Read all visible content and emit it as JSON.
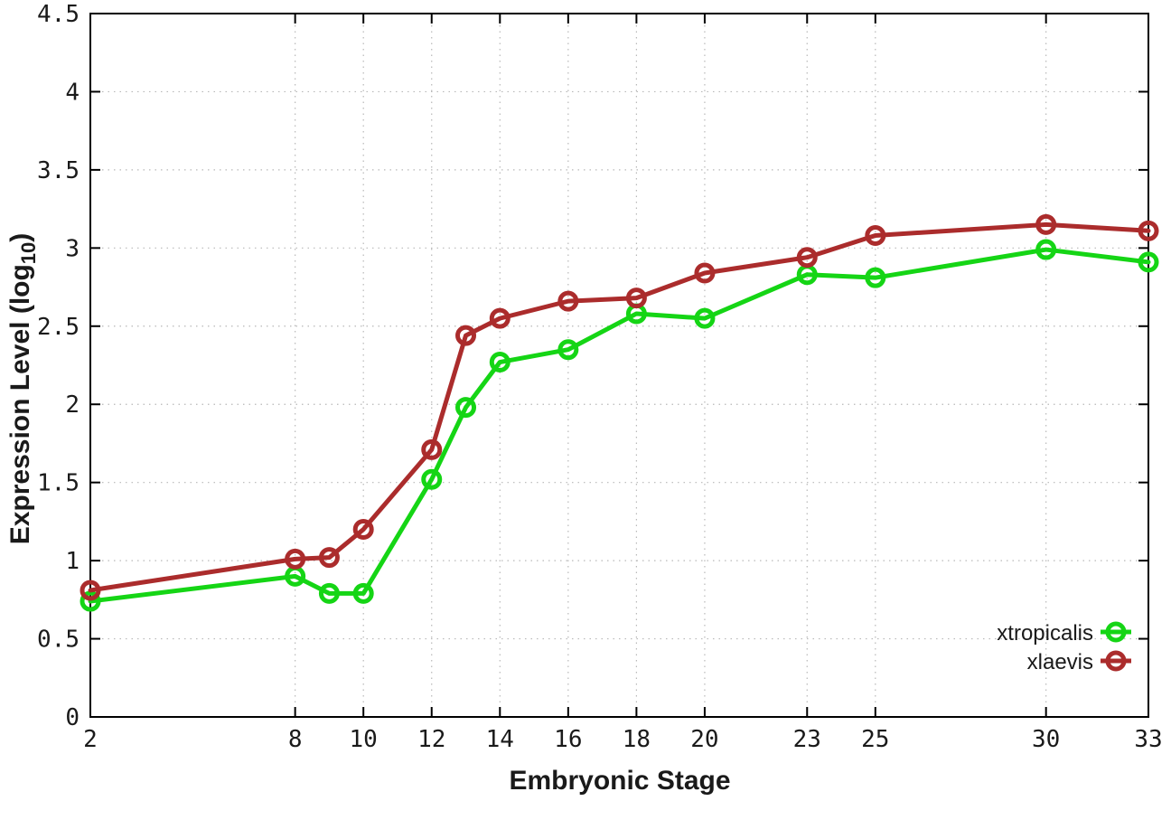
{
  "window": {
    "background": "#ffffff"
  },
  "chart_data": {
    "type": "line",
    "title": "",
    "xlabel": "Embryonic Stage",
    "ylabel": "Expression Level (log10)",
    "ylabel_rich": {
      "text": "Expression Level (log",
      "subscript": "10",
      "suffix": ")"
    },
    "x": [
      2,
      8,
      9,
      10,
      12,
      13,
      14,
      16,
      18,
      20,
      23,
      25,
      30,
      33
    ],
    "xlim": [
      2,
      33
    ],
    "ylim": [
      0,
      4.5
    ],
    "xticks": [
      2,
      8,
      10,
      12,
      14,
      16,
      18,
      20,
      23,
      25,
      30,
      33
    ],
    "yticks": [
      0,
      0.5,
      1,
      1.5,
      2,
      2.5,
      3,
      3.5,
      4,
      4.5
    ],
    "grid": true,
    "legend_position": "inside-bottom-right",
    "series": [
      {
        "name": "xtropicalis",
        "color": "#15d515",
        "marker": "open-circle",
        "values": [
          0.74,
          0.9,
          0.79,
          0.79,
          1.52,
          1.98,
          2.27,
          2.35,
          2.58,
          2.55,
          2.83,
          2.81,
          2.99,
          2.91
        ]
      },
      {
        "name": "xlaevis",
        "color": "#ab2c2c",
        "marker": "open-circle",
        "values": [
          0.81,
          1.01,
          1.02,
          1.2,
          1.71,
          2.44,
          2.55,
          2.66,
          2.68,
          2.84,
          2.94,
          3.08,
          3.15,
          3.11
        ]
      }
    ],
    "styles": {
      "grid_color": "#b8b8b8",
      "axis_color": "#000000",
      "tick_label_color": "#1a1a1a",
      "line_width": 5,
      "marker_radius": 9,
      "marker_stroke": 5
    }
  }
}
